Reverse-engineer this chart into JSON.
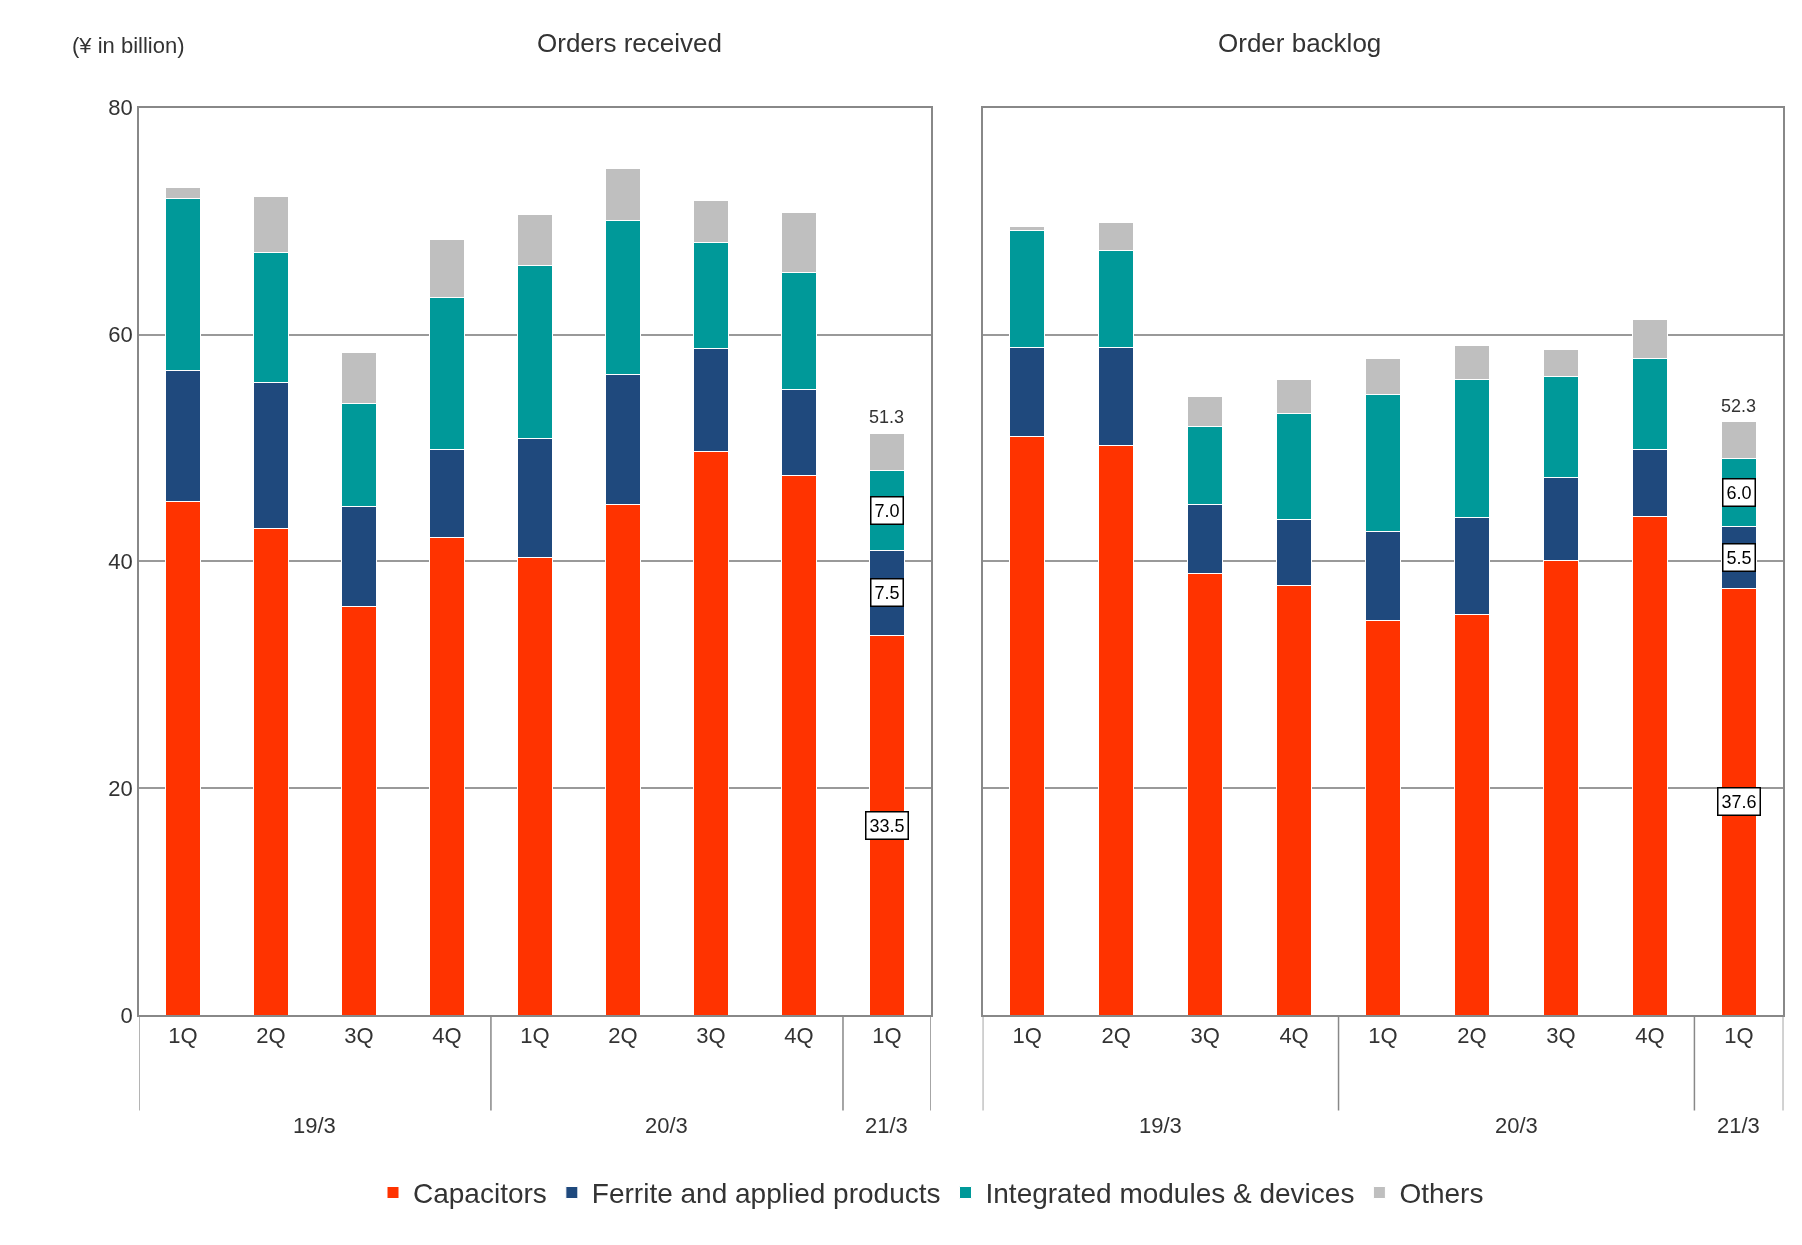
{
  "chart_data": [
    {
      "type": "bar",
      "stacked": true,
      "title": "Orders received",
      "ylabel": "(¥ in billion)",
      "categories": [
        "1Q",
        "2Q",
        "3Q",
        "4Q",
        "1Q",
        "2Q",
        "3Q",
        "4Q",
        "1Q"
      ],
      "annotations": [
        "19/3",
        "20/3",
        "21/3"
      ],
      "ylim": [
        0,
        80
      ],
      "yticks": [
        0,
        20,
        40,
        60,
        80
      ],
      "grid": "y",
      "legend": "bottom",
      "series": [
        {
          "name": "Capacitors",
          "color": "#ff3300",
          "values": [
            45.3,
            42.9,
            36.0,
            42.1,
            40.3,
            45.0,
            49.7,
            47.6,
            33.5
          ],
          "value_labels": [
            null,
            null,
            null,
            null,
            null,
            null,
            null,
            null,
            "33.5"
          ]
        },
        {
          "name": "Ferrite and applied products",
          "color": "#1f497d",
          "values": [
            11.5,
            12.9,
            8.8,
            7.8,
            10.5,
            11.5,
            9.1,
            7.6,
            7.5
          ],
          "value_labels": [
            null,
            null,
            null,
            null,
            null,
            null,
            null,
            null,
            "7.5"
          ]
        },
        {
          "name": "Integrated modules & devices",
          "color": "#009999",
          "values": [
            15.2,
            11.4,
            9.1,
            13.4,
            15.3,
            13.6,
            9.3,
            10.3,
            7.0
          ],
          "value_labels": [
            null,
            null,
            null,
            null,
            null,
            null,
            null,
            null,
            "7.0"
          ]
        },
        {
          "name": "Others",
          "color": "#bfbfbf",
          "values": [
            1.0,
            5.0,
            4.5,
            5.1,
            4.5,
            4.5,
            3.7,
            5.3,
            3.3
          ]
        }
      ],
      "totals": [
        null,
        null,
        null,
        null,
        null,
        null,
        null,
        null,
        "51.3"
      ]
    },
    {
      "type": "bar",
      "stacked": true,
      "title": "Order backlog",
      "categories": [
        "1Q",
        "2Q",
        "3Q",
        "4Q",
        "1Q",
        "2Q",
        "3Q",
        "4Q",
        "1Q"
      ],
      "annotations": [
        "19/3",
        "20/3",
        "21/3"
      ],
      "ylim": [
        0,
        80
      ],
      "yticks": [
        0,
        20,
        40,
        60,
        80
      ],
      "grid": "y",
      "tick_labels": "x",
      "series": [
        {
          "color": "#ff3300",
          "values": [
            51.0,
            50.2,
            38.9,
            37.9,
            34.8,
            35.3,
            40.1,
            44.0,
            37.6
          ],
          "value_labels": [
            null,
            null,
            null,
            null,
            null,
            null,
            null,
            null,
            "37.6"
          ]
        },
        {
          "color": "#1f497d",
          "values": [
            7.9,
            8.7,
            6.1,
            5.8,
            7.8,
            8.6,
            7.3,
            5.9,
            5.5
          ],
          "value_labels": [
            null,
            null,
            null,
            null,
            null,
            null,
            null,
            null,
            "5.5"
          ]
        },
        {
          "color": "#009999",
          "values": [
            10.3,
            8.5,
            6.9,
            9.3,
            12.1,
            12.1,
            8.9,
            8.0,
            6.0
          ],
          "value_labels": [
            null,
            null,
            null,
            null,
            null,
            null,
            null,
            null,
            "6.0"
          ]
        },
        {
          "color": "#bfbfbf",
          "values": [
            0.3,
            2.5,
            2.6,
            3.0,
            3.2,
            3.0,
            2.4,
            3.4,
            3.2
          ]
        }
      ],
      "totals": [
        null,
        null,
        null,
        null,
        null,
        null,
        null,
        null,
        "52.3"
      ]
    }
  ]
}
